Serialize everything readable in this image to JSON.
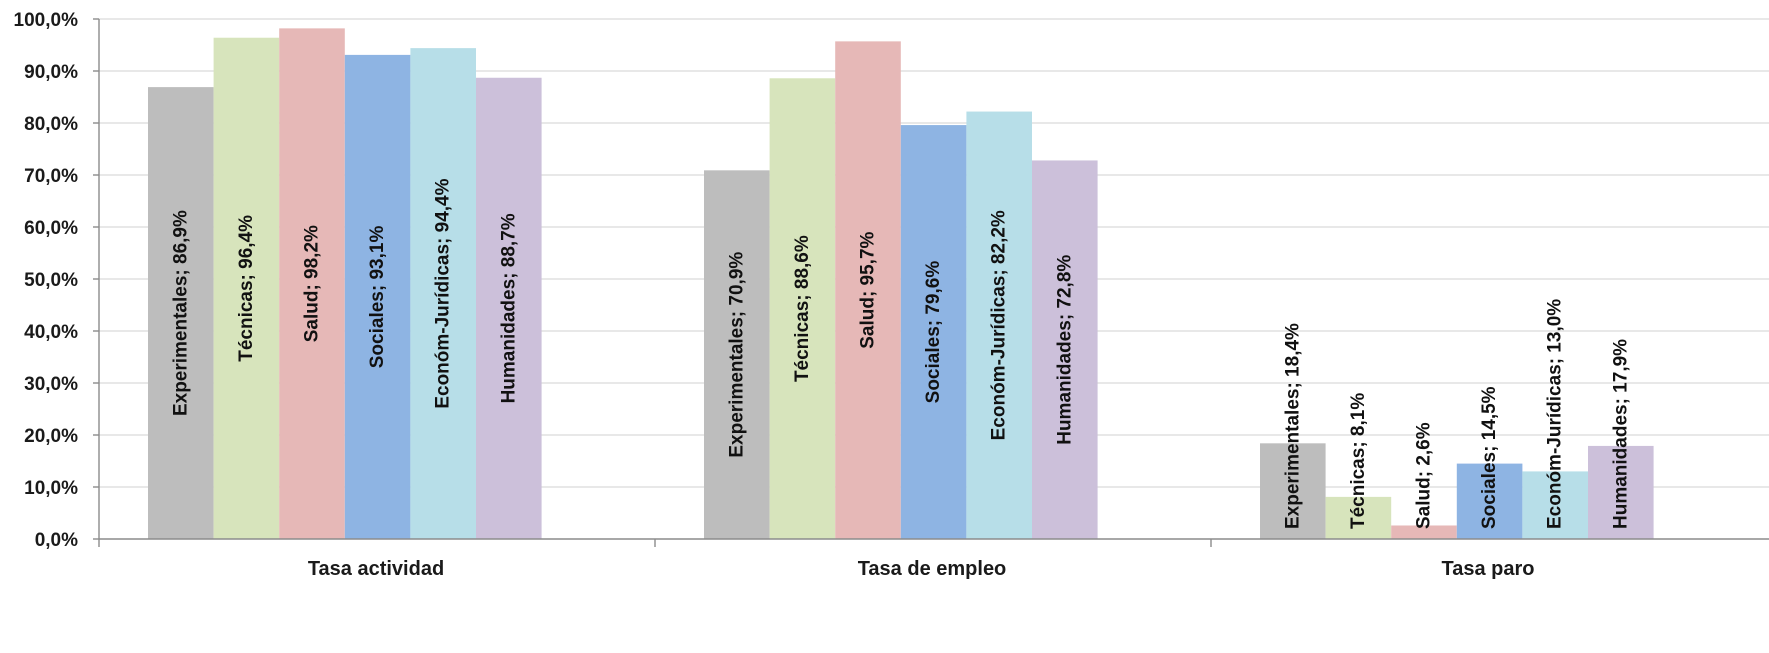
{
  "chart_data": {
    "type": "bar",
    "title": "",
    "xlabel": "",
    "ylabel": "",
    "ylim": [
      0,
      100
    ],
    "ytick_values": [
      0,
      10,
      20,
      30,
      40,
      50,
      60,
      70,
      80,
      90,
      100
    ],
    "ytick_labels": [
      "0,0%",
      "10,0%",
      "20,0%",
      "30,0%",
      "40,0%",
      "50,0%",
      "60,0%",
      "70,0%",
      "80,0%",
      "90,0%",
      "100,0%"
    ],
    "grid": true,
    "legend": "none",
    "categories": [
      "Tasa actividad",
      "Tasa de empleo",
      "Tasa paro"
    ],
    "series": [
      {
        "name": "Experimentales",
        "color": "#bdbdbd",
        "values": [
          86.9,
          70.9,
          18.4
        ],
        "value_labels": [
          "86,9%",
          "70,9%",
          "18,4%"
        ]
      },
      {
        "name": "Técnicas",
        "color": "#d7e4bc",
        "values": [
          96.4,
          88.6,
          8.1
        ],
        "value_labels": [
          "96,4%",
          "88,6%",
          "8,1%"
        ]
      },
      {
        "name": "Salud",
        "color": "#e6b8b7",
        "values": [
          98.2,
          95.7,
          2.6
        ],
        "value_labels": [
          "98,2%",
          "95,7%",
          "2,6%"
        ]
      },
      {
        "name": "Sociales",
        "color": "#8eb4e3",
        "values": [
          93.1,
          79.6,
          14.5
        ],
        "value_labels": [
          "93,1%",
          "79,6%",
          "14,5%"
        ]
      },
      {
        "name": "Económ-Jurídicas",
        "color": "#b7dee8",
        "values": [
          94.4,
          82.2,
          13.0
        ],
        "value_labels": [
          "94,4%",
          "82,2%",
          "13,0%"
        ]
      },
      {
        "name": "Humanidades",
        "color": "#ccc0da",
        "values": [
          88.7,
          72.8,
          17.9
        ],
        "value_labels": [
          "88,7%",
          "72,8%",
          "17,9%"
        ]
      }
    ]
  }
}
